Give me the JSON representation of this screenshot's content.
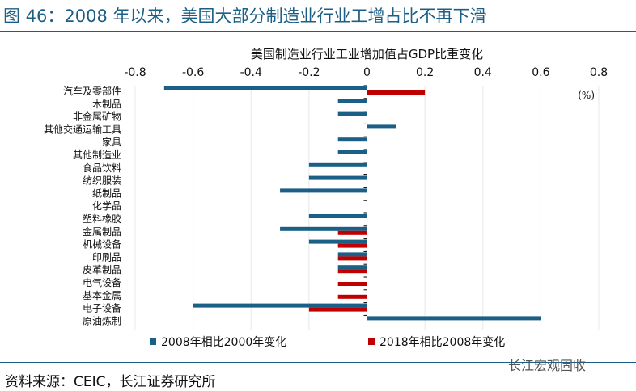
{
  "figure_title": "图 46：2008 年以来，美国大部分制造业行业工增占比不再下滑",
  "source": "资料来源：CEIC，长江证券研究所",
  "watermark": "长江宏观固收",
  "chart_data": {
    "type": "bar",
    "orientation": "horizontal",
    "title": "美国制造业行业工业增加值占GDP比重变化",
    "unit_label": "(%)",
    "xlim": [
      -0.8,
      0.8
    ],
    "x_ticks": [
      "-0.8",
      "-0.6",
      "-0.4",
      "-0.2",
      "0",
      "0.2",
      "0.4",
      "0.6",
      "0.8"
    ],
    "grid": true,
    "legend_position": "bottom",
    "categories": [
      "汽车及零部件",
      "木制品",
      "非金属矿物",
      "其他交通运输工具",
      "家具",
      "其他制造业",
      "食品饮料",
      "纺织服装",
      "纸制品",
      "化学品",
      "塑料橡胶",
      "金属制品",
      "机械设备",
      "印刷品",
      "皮革制品",
      "电气设备",
      "基本金属",
      "电子设备",
      "原油炼制"
    ],
    "series": [
      {
        "name": "2008年相比2000年变化",
        "color": "#1c5f86",
        "values": [
          -0.7,
          -0.1,
          -0.1,
          0.1,
          -0.1,
          -0.1,
          -0.2,
          -0.2,
          -0.3,
          0,
          -0.2,
          -0.3,
          -0.2,
          -0.1,
          -0.1,
          0,
          0,
          -0.6,
          0.6
        ]
      },
      {
        "name": "2018年相比2008年变化",
        "color": "#c00000",
        "values": [
          0.2,
          0,
          0,
          0,
          0,
          0,
          0,
          0,
          0,
          0,
          0,
          -0.1,
          -0.1,
          -0.1,
          -0.1,
          -0.1,
          -0.1,
          -0.2,
          0
        ]
      }
    ]
  }
}
